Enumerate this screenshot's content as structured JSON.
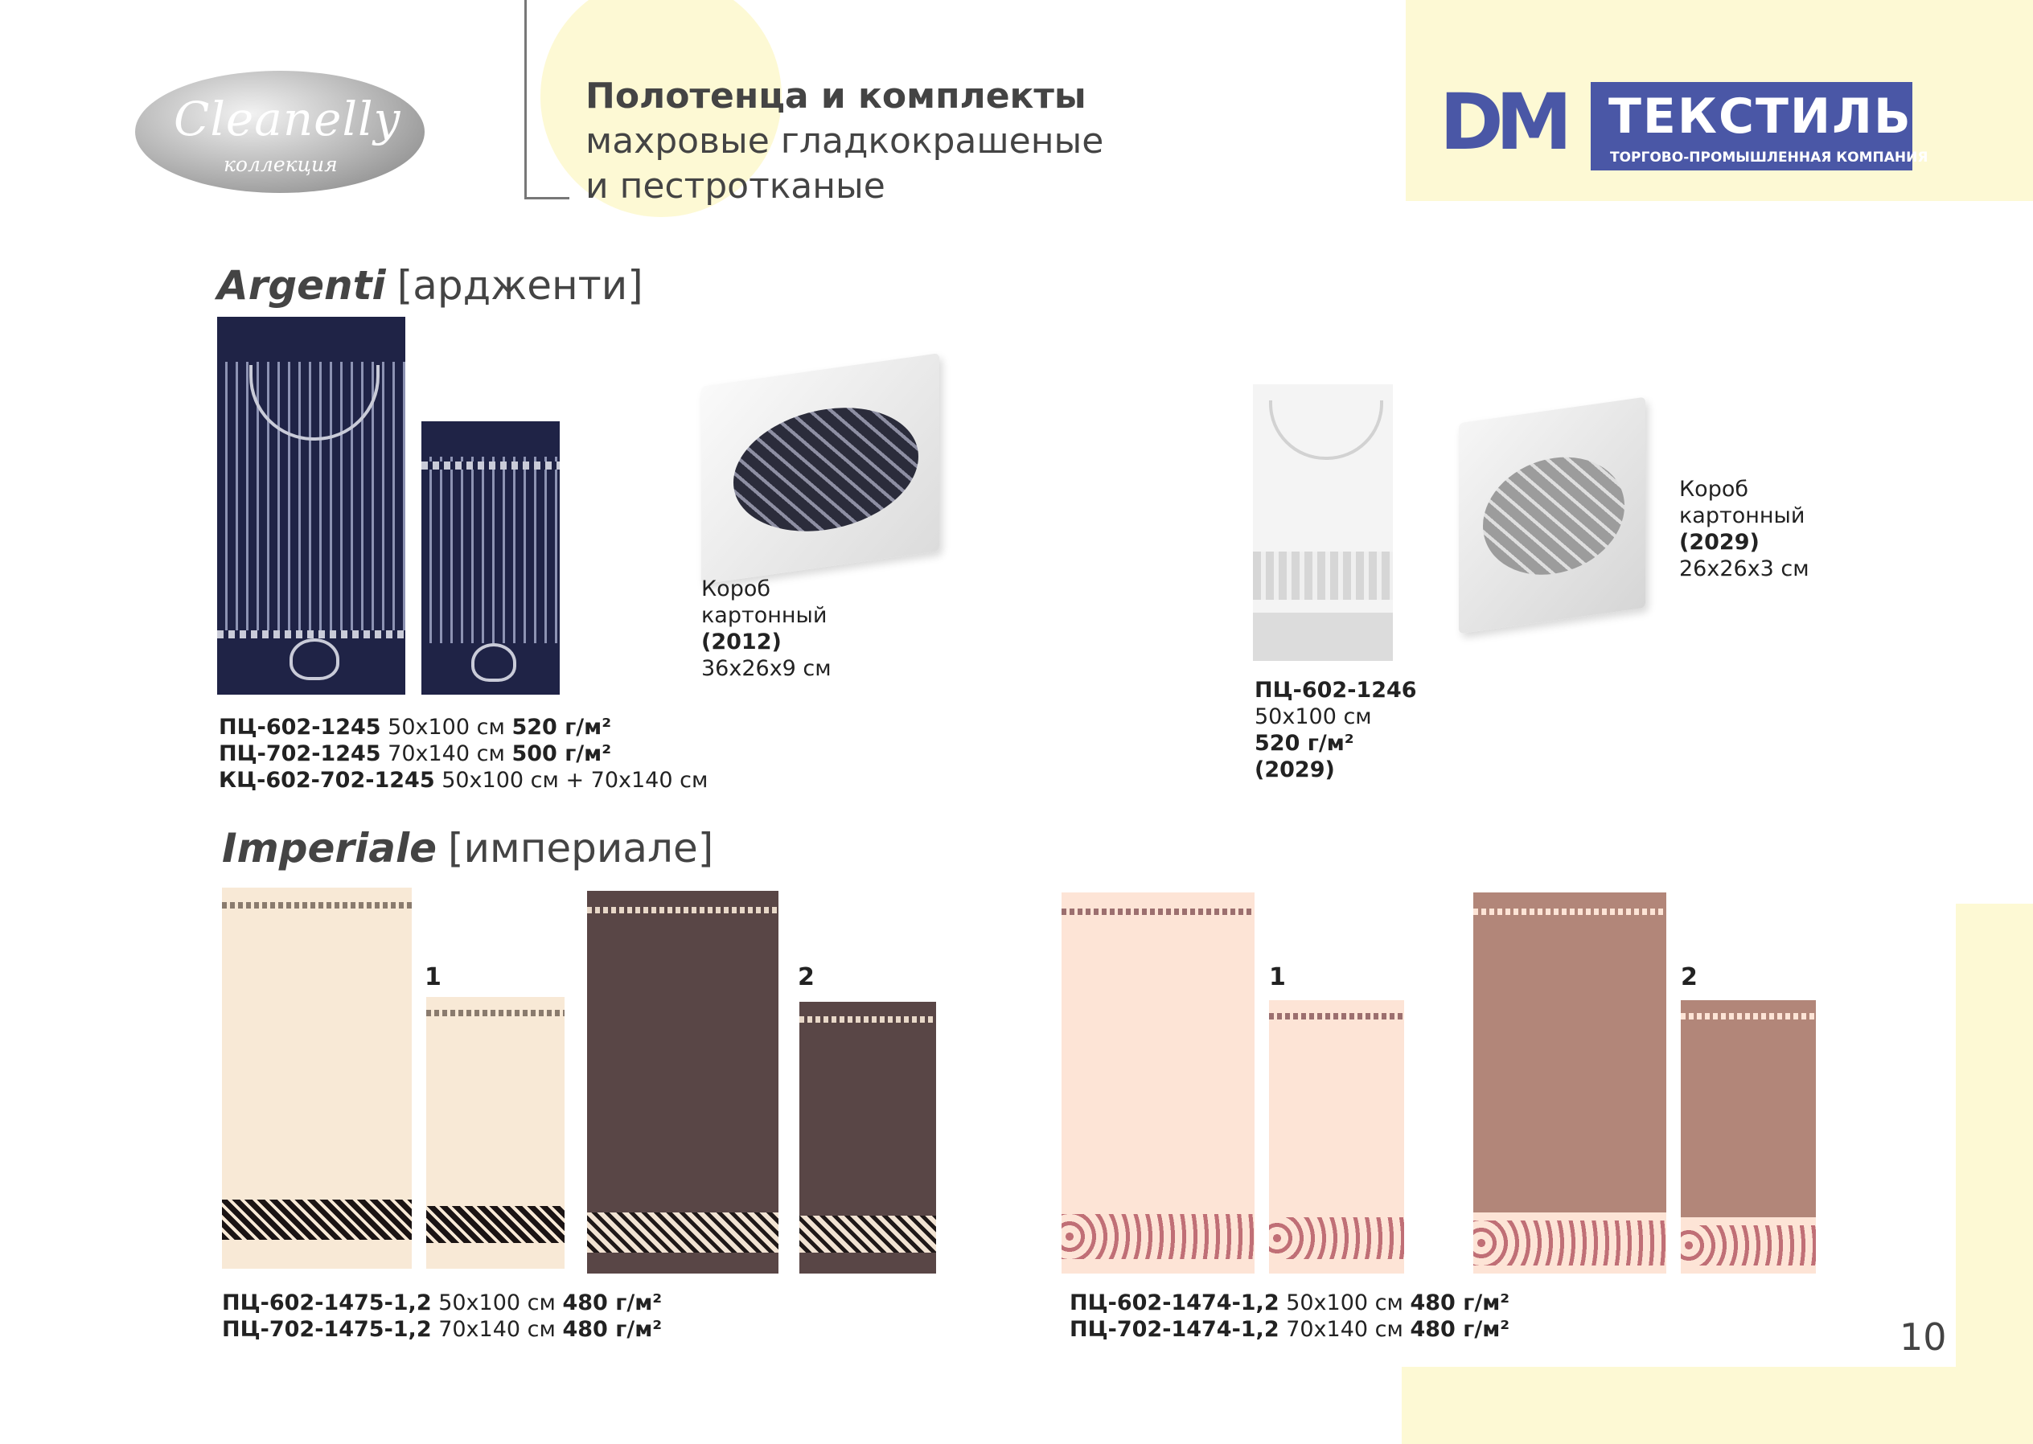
{
  "header": {
    "brand_logo_text": "Cleanelly",
    "brand_logo_sub": "коллекция",
    "title_line1": "Полотенца и комплекты",
    "title_line2": "махровые гладкокрашеные",
    "title_line3": "и пестротканые",
    "company_logo_letters": "DM",
    "company_name": "ТЕКСТИЛЬ",
    "company_tagline": "ТОРГОВО-ПРОМЫШЛЕННАЯ КОМПАНИЯ"
  },
  "argenti": {
    "name": "Argenti",
    "translit": "[ардженти]",
    "box1": {
      "line1": "Короб",
      "line2": "картонный",
      "code": "(2012)",
      "size": "36x26x9 см"
    },
    "specs": [
      {
        "code": "ПЦ-602-1245",
        "size": "50x100 см",
        "weight": "520 г/м²"
      },
      {
        "code": "ПЦ-702-1245",
        "size": "70x140 см",
        "weight": "500 г/м²"
      },
      {
        "code": "КЦ-602-702-1245",
        "size": "50x100 см + 70x140 см",
        "weight": ""
      }
    ],
    "white": {
      "code": "ПЦ-602-1246",
      "size": "50x100 см",
      "weight": "520 г/м²",
      "box_code": "(2029)"
    },
    "box2": {
      "line1": "Короб",
      "line2": "картонный",
      "code": "(2029)",
      "size": "26x26x3 см"
    }
  },
  "imperiale": {
    "name": "Imperiale",
    "translit": "[империале]",
    "labels": [
      "1",
      "2",
      "1",
      "2"
    ],
    "specs_left": [
      {
        "code": "ПЦ-602-1475-1,2",
        "size": "50x100 см",
        "weight": "480 г/м²"
      },
      {
        "code": "ПЦ-702-1475-1,2",
        "size": "70x140 см",
        "weight": "480 г/м²"
      }
    ],
    "specs_right": [
      {
        "code": "ПЦ-602-1474-1,2",
        "size": "50x100 см",
        "weight": "480 г/м²"
      },
      {
        "code": "ПЦ-702-1474-1,2",
        "size": "70x140 см",
        "weight": "480 г/м²"
      }
    ]
  },
  "page_number": "10",
  "colors": {
    "accent_yellow": "#fdf9d4",
    "logo_blue": "#4a57a6",
    "argenti_navy": "#1f2346",
    "imperiale_cream": "#f8e9d6",
    "imperiale_brown": "#594646",
    "imperiale_peach": "#fde4d6",
    "imperiale_rose": "#b28679"
  }
}
